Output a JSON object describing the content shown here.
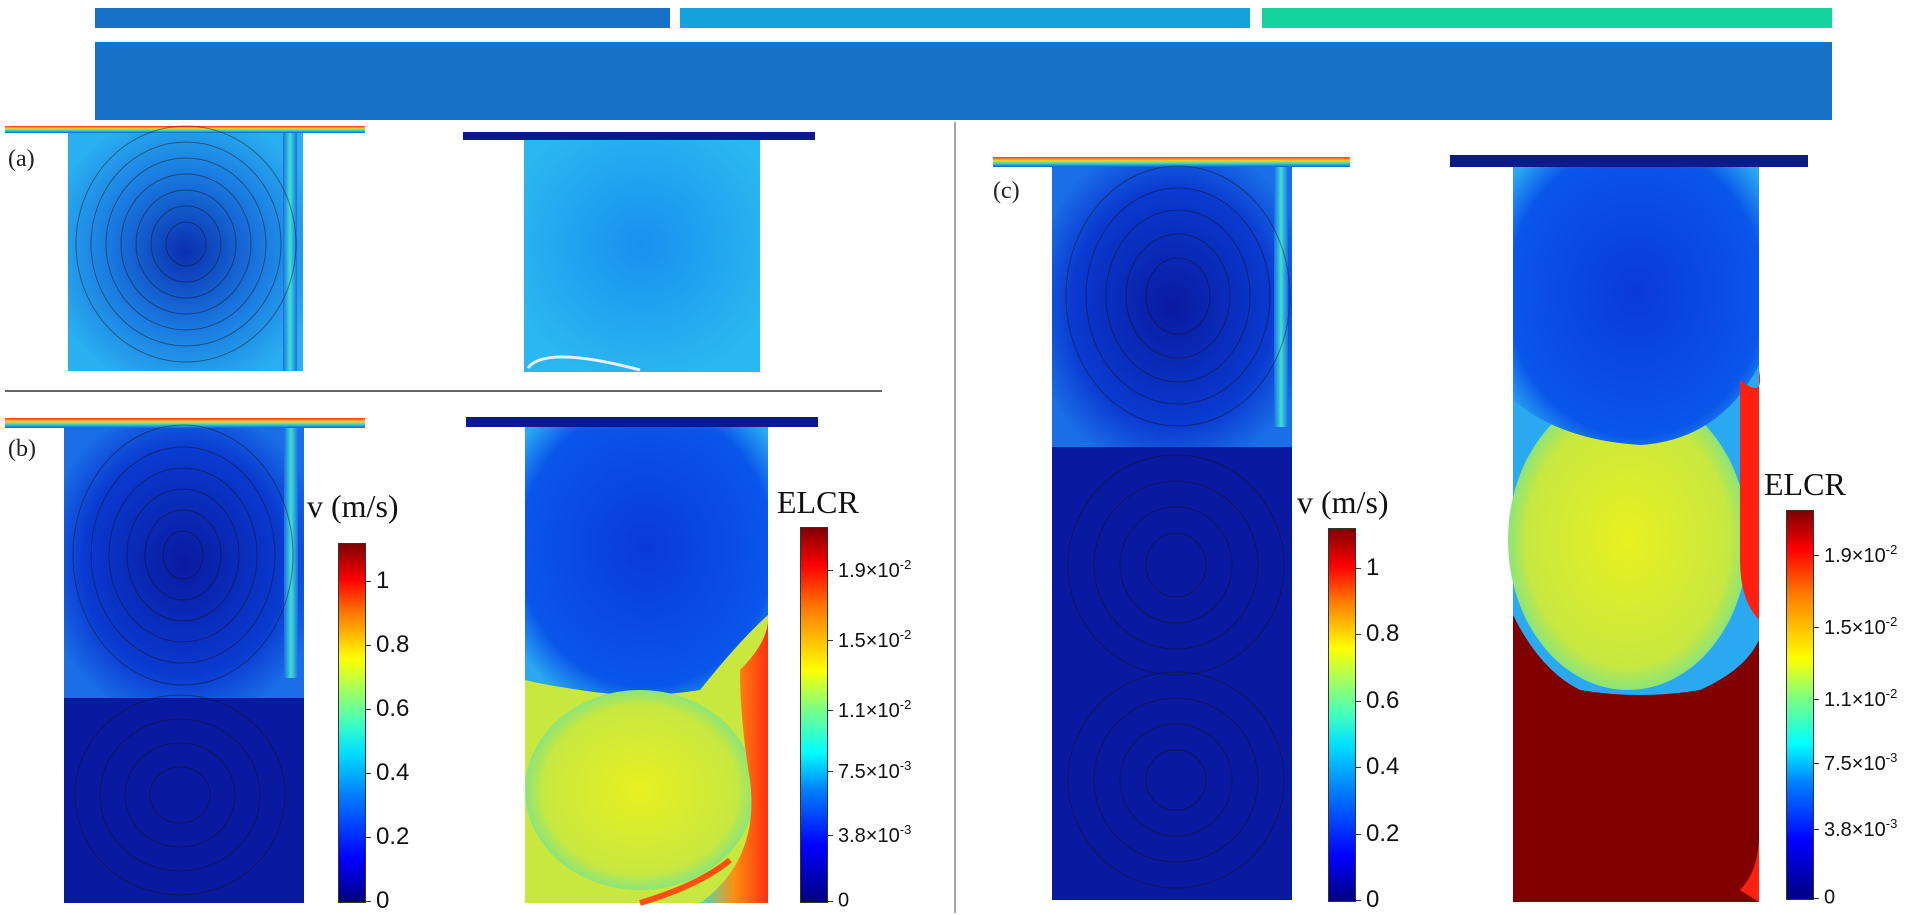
{
  "header": {
    "stripe_colors": [
      "#1572c7",
      "#14a3dc",
      "#14d39c"
    ],
    "banner_color": "#1572c7"
  },
  "panels": {
    "a": {
      "label": "(a)"
    },
    "b": {
      "label": "(b)"
    },
    "c": {
      "label": "(c)"
    }
  },
  "velocity_colorbar": {
    "title": "v (m/s)",
    "ticks": [
      "1",
      "0.8",
      "0.6",
      "0.4",
      "0.2",
      "0"
    ],
    "tick_values": [
      1,
      0.8,
      0.6,
      0.4,
      0.2,
      0
    ],
    "range": [
      0,
      1.12
    ]
  },
  "elcr_colorbar": {
    "title": "ELCR",
    "ticks": [
      {
        "mantissa": "1.9×10",
        "exp": "-2"
      },
      {
        "mantissa": "1.5×10",
        "exp": "-2"
      },
      {
        "mantissa": "1.1×10",
        "exp": "-2"
      },
      {
        "mantissa": "7.5×10",
        "exp": "-3"
      },
      {
        "mantissa": "3.8×10",
        "exp": "-3"
      },
      {
        "mantissa": "0",
        "exp": ""
      }
    ],
    "tick_values": [
      0.019,
      0.015,
      0.011,
      0.0075,
      0.0038,
      0
    ],
    "range": [
      0,
      0.0215
    ]
  }
}
